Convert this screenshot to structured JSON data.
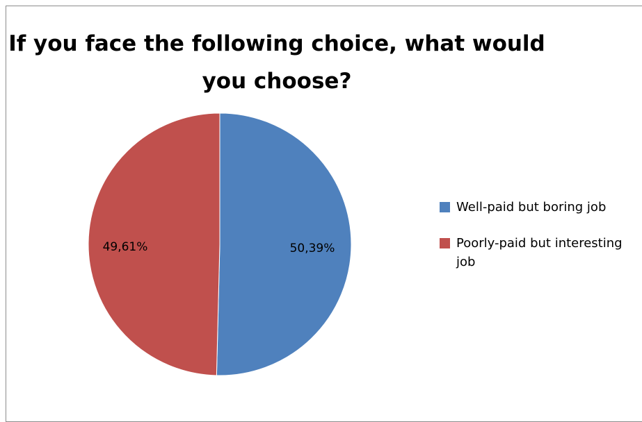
{
  "chart_data": {
    "type": "pie",
    "title": "If you face the following choice, what would you choose?",
    "categories": [
      "Well-paid but boring job",
      "Poorly-paid but interesting job"
    ],
    "values": [
      50.39,
      49.61
    ],
    "data_labels": [
      "50,39%",
      "49,61%"
    ],
    "colors": [
      "#4f81bd",
      "#c0504d"
    ],
    "legend_position": "right"
  }
}
